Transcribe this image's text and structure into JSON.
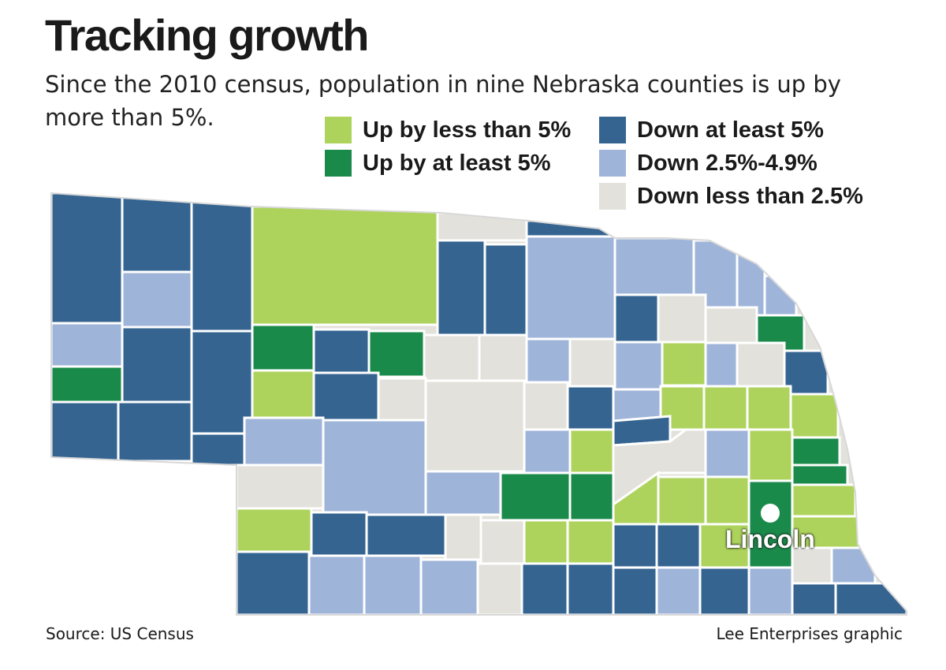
{
  "title": "Tracking growth",
  "subtitle": "Since the 2010 census, population in nine Nebraska counties is up by more than 5%.",
  "legend": [
    {
      "label": "Up by less than 5%",
      "color": "#add35c"
    },
    {
      "label": "Up by at least 5%",
      "color": "#1a8a4a"
    },
    {
      "label": "Down at least 5%",
      "color": "#356491"
    },
    {
      "label": "Down 2.5%-4.9%",
      "color": "#9fb4d9"
    },
    {
      "label": "Down less than 2.5%",
      "color": "#e2e1db"
    }
  ],
  "city": {
    "name": "Lincoln"
  },
  "source": "Source: US Census",
  "credit": "Lee Enterprises graphic"
}
